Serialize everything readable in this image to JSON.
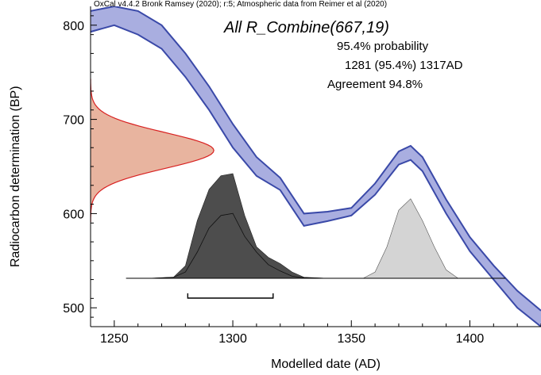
{
  "chart_data": {
    "type": "area",
    "credit": "OxCal v4.4.2 Bronk Ramsey (2020); r:5; Atmospheric data from Reimer et al (2020)",
    "title": "All R_Combine(667,19)",
    "probability_label": "95.4% probability",
    "range_label": "1281 (95.4%) 1317AD",
    "agreement_label": "Agreement 94.8%",
    "xlabel": "Modelled date (AD)",
    "ylabel": "Radiocarbon determination (BP)",
    "xlim": [
      1240,
      1430
    ],
    "ylim": [
      480,
      820
    ],
    "x_ticks": [
      1250,
      1300,
      1350,
      1400
    ],
    "y_ticks": [
      500,
      600,
      700,
      800
    ],
    "calibration_curve": {
      "x": [
        1240,
        1250,
        1260,
        1270,
        1280,
        1290,
        1300,
        1310,
        1320,
        1330,
        1340,
        1350,
        1360,
        1370,
        1375,
        1380,
        1390,
        1400,
        1410,
        1420,
        1430
      ],
      "upper": [
        815,
        820,
        815,
        800,
        770,
        735,
        695,
        660,
        638,
        600,
        602,
        606,
        632,
        666,
        672,
        660,
        615,
        575,
        545,
        518,
        497
      ],
      "lower": [
        793,
        800,
        790,
        775,
        745,
        710,
        670,
        640,
        625,
        587,
        592,
        598,
        620,
        652,
        657,
        645,
        600,
        560,
        530,
        500,
        480
      ]
    },
    "measured_date": {
      "mean_bp": 667,
      "sigma_bp": 19,
      "color": "#e8b49f",
      "outline": "#d82020"
    },
    "posterior": {
      "x": [
        1255,
        1265,
        1275,
        1280,
        1285,
        1290,
        1295,
        1300,
        1305,
        1310,
        1315,
        1320,
        1325,
        1330,
        1340,
        1355,
        1360,
        1365,
        1370,
        1375,
        1380,
        1385,
        1390,
        1395,
        1415
      ],
      "combined": [
        0,
        0,
        0.01,
        0.12,
        0.55,
        0.85,
        0.98,
        1.0,
        0.6,
        0.3,
        0.2,
        0.14,
        0.06,
        0.01,
        0,
        0,
        0.06,
        0.3,
        0.65,
        0.76,
        0.55,
        0.3,
        0.08,
        0,
        0
      ],
      "individual": [
        0,
        0,
        0.01,
        0.06,
        0.25,
        0.48,
        0.6,
        0.62,
        0.4,
        0.25,
        0.13,
        0.07,
        0.02,
        0.005,
        0,
        0,
        0.06,
        0.3,
        0.65,
        0.76,
        0.55,
        0.3,
        0.08,
        0,
        0
      ],
      "dark_color": "#4d4d4d",
      "light_color": "#d4d4d4",
      "split_x": 1340
    },
    "range_bracket": {
      "from": 1281,
      "to": 1317
    }
  }
}
